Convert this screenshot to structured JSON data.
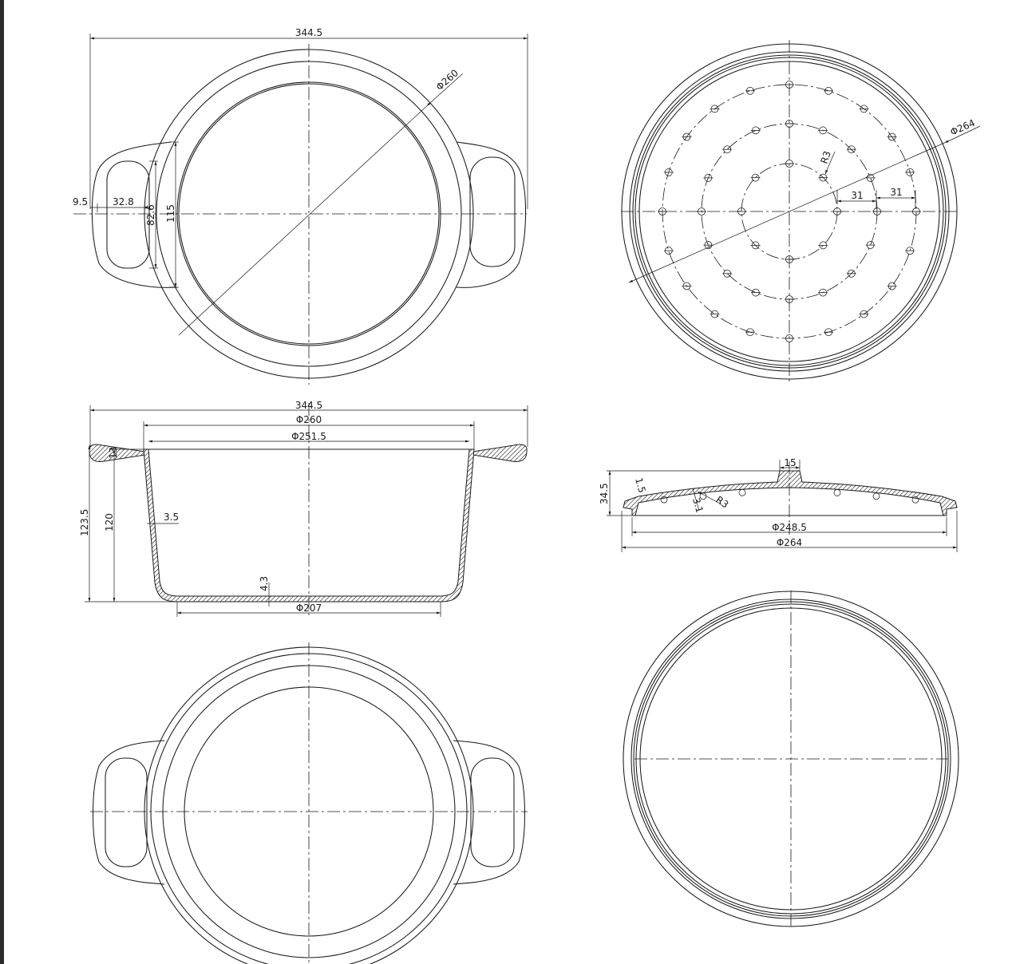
{
  "colors": {
    "background": "#ffffff",
    "line": "#1a1a1a",
    "left_bar": "#2b2b2b"
  },
  "views": {
    "pot_top": {
      "overall_width": "344.5",
      "rim_diameter": "Φ260",
      "handle_offset": "9.5",
      "handle_hole_width": "32.8",
      "handle_hole_height": "82.6",
      "handle_root_height": "115"
    },
    "lid_top": {
      "diameter": "Φ264",
      "hole_radius": "R3",
      "hole_pitch_1": "31",
      "hole_pitch_2": "31"
    },
    "pot_section": {
      "overall_width": "344.5",
      "outer_diameter": "Φ260",
      "inner_diameter": "Φ251.5",
      "bottom_diameter": "Φ207",
      "total_height": "123.5",
      "body_height": "120",
      "wall_thickness": "3.5",
      "bottom_thickness": "4.3",
      "handle_thickness": "13"
    },
    "lid_section": {
      "height": "34.5",
      "knob_width": "15",
      "rim_thickness": "1.5",
      "wall_thickness": "3.1",
      "fillet_radius": "R3",
      "inner_diameter": "Φ248.5",
      "outer_diameter": "Φ264"
    }
  }
}
